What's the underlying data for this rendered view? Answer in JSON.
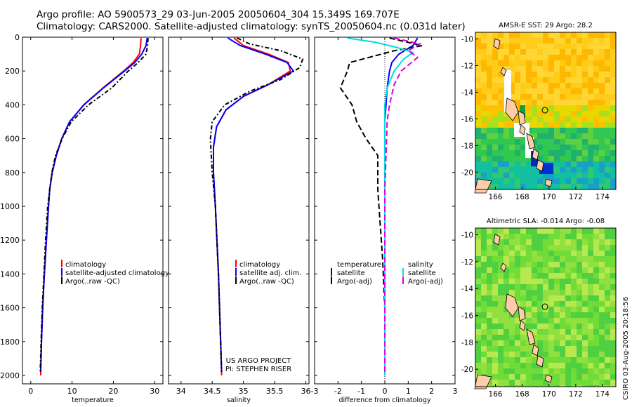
{
  "header": {
    "line1": "Argo profile: AO 5900573_29 03-Jun-2005 20050604_304 15.349S 169.707E",
    "line2": "Climatology: CARS2000. Satellite-adjusted climatology: synTS_20050604.nc (0.031d later)"
  },
  "side_label": "CSIRO 03-Aug-2005 20:18:56",
  "chart_data": [
    {
      "id": "temperature",
      "type": "line",
      "xlabel": "temperature",
      "xlim": [
        -2,
        32
      ],
      "xticks": [
        0,
        10,
        20,
        30
      ],
      "ylim": [
        2050,
        0
      ],
      "yticks": [
        0,
        200,
        400,
        600,
        800,
        1000,
        1200,
        1400,
        1600,
        1800,
        2000
      ],
      "legend": [
        "climatology",
        "satellite-adjusted climatology",
        "Argo(..raw -QC)"
      ],
      "series": [
        {
          "name": "climatology",
          "color": "#ff0000",
          "dash": "",
          "points": [
            [
              26.7,
              5
            ],
            [
              26.6,
              50
            ],
            [
              26.3,
              100
            ],
            [
              24.8,
              150
            ],
            [
              22.5,
              200
            ],
            [
              17.5,
              300
            ],
            [
              12.8,
              400
            ],
            [
              9.4,
              500
            ],
            [
              7.5,
              600
            ],
            [
              6.2,
              700
            ],
            [
              5.2,
              800
            ],
            [
              4.6,
              900
            ],
            [
              4.3,
              1000
            ],
            [
              3.8,
              1200
            ],
            [
              3.3,
              1400
            ],
            [
              2.9,
              1600
            ],
            [
              2.6,
              1800
            ],
            [
              2.4,
              2000
            ]
          ]
        },
        {
          "name": "satellite-adjusted climatology",
          "color": "#0000ff",
          "dash": "",
          "points": [
            [
              28.2,
              5
            ],
            [
              27.9,
              50
            ],
            [
              26.9,
              100
            ],
            [
              25.2,
              150
            ],
            [
              22.7,
              200
            ],
            [
              17.6,
              300
            ],
            [
              12.9,
              400
            ],
            [
              9.4,
              500
            ],
            [
              7.5,
              600
            ],
            [
              6.2,
              700
            ],
            [
              5.2,
              800
            ],
            [
              4.6,
              900
            ],
            [
              4.3,
              1000
            ],
            [
              3.8,
              1200
            ],
            [
              3.3,
              1400
            ],
            [
              2.9,
              1600
            ],
            [
              2.6,
              1800
            ],
            [
              2.4,
              1980
            ]
          ]
        },
        {
          "name": "Argo(..raw -QC)",
          "color": "#000000",
          "dash": "6,3,2,3",
          "points": [
            [
              28.4,
              5
            ],
            [
              28.3,
              50
            ],
            [
              27.9,
              100
            ],
            [
              26.0,
              150
            ],
            [
              23.6,
              200
            ],
            [
              19.6,
              300
            ],
            [
              14.0,
              400
            ],
            [
              9.8,
              500
            ],
            [
              7.6,
              600
            ],
            [
              6.0,
              700
            ],
            [
              5.1,
              800
            ],
            [
              4.6,
              900
            ],
            [
              4.1,
              1000
            ],
            [
              3.6,
              1200
            ],
            [
              3.2,
              1400
            ],
            [
              2.8,
              1600
            ],
            [
              2.5,
              1800
            ],
            [
              2.3,
              1980
            ]
          ]
        }
      ]
    },
    {
      "id": "salinity",
      "type": "line",
      "xlabel": "salinity",
      "xlim": [
        33.8,
        36.05
      ],
      "xticks": [
        34,
        34.5,
        35,
        35.5,
        36
      ],
      "xticklabels": [
        "34",
        "34.5",
        "35",
        "35.5",
        "36"
      ],
      "ylim": [
        2050,
        0
      ],
      "yticks": [
        0,
        200,
        400,
        600,
        800,
        1000,
        1200,
        1400,
        1600,
        1800,
        2000
      ],
      "legend": [
        "climatology",
        "satellite adj. clim.",
        "Argo(..raw -QC)"
      ],
      "annotation": [
        "US ARGO PROJECT",
        "PI: STEPHEN RISER"
      ],
      "series": [
        {
          "name": "climatology",
          "color": "#ff0000",
          "dash": "",
          "points": [
            [
              34.85,
              5
            ],
            [
              35.0,
              50
            ],
            [
              35.4,
              100
            ],
            [
              35.72,
              150
            ],
            [
              35.75,
              200
            ],
            [
              35.4,
              280
            ],
            [
              35.0,
              350
            ],
            [
              34.72,
              430
            ],
            [
              34.57,
              530
            ],
            [
              34.52,
              650
            ],
            [
              34.52,
              800
            ],
            [
              34.55,
              1000
            ],
            [
              34.6,
              1400
            ],
            [
              34.65,
              2000
            ]
          ]
        },
        {
          "name": "satellite adj. clim.",
          "color": "#0000ff",
          "dash": "",
          "points": [
            [
              34.75,
              5
            ],
            [
              34.95,
              50
            ],
            [
              35.35,
              100
            ],
            [
              35.7,
              150
            ],
            [
              35.8,
              200
            ],
            [
              35.4,
              280
            ],
            [
              35.0,
              350
            ],
            [
              34.72,
              430
            ],
            [
              34.57,
              530
            ],
            [
              34.52,
              650
            ],
            [
              34.52,
              800
            ],
            [
              34.55,
              1000
            ],
            [
              34.6,
              1400
            ],
            [
              34.65,
              1980
            ]
          ]
        },
        {
          "name": "Argo(..raw -QC)",
          "color": "#000000",
          "dash": "6,3,2,3",
          "points": [
            [
              34.9,
              5
            ],
            [
              35.1,
              40
            ],
            [
              35.6,
              80
            ],
            [
              35.95,
              130
            ],
            [
              35.9,
              180
            ],
            [
              35.6,
              250
            ],
            [
              35.1,
              320
            ],
            [
              34.7,
              400
            ],
            [
              34.5,
              500
            ],
            [
              34.47,
              600
            ],
            [
              34.5,
              800
            ],
            [
              34.55,
              1000
            ],
            [
              34.6,
              1400
            ],
            [
              34.65,
              1980
            ]
          ]
        }
      ]
    },
    {
      "id": "difference",
      "type": "line",
      "xlabel": "difference from climatology",
      "xlim": [
        -3,
        3
      ],
      "xticks": [
        -3,
        -2,
        -1,
        0,
        1,
        2,
        3
      ],
      "ylim": [
        2050,
        0
      ],
      "yticks": [
        0,
        200,
        400,
        600,
        800,
        1000,
        1200,
        1400,
        1600,
        1800,
        2000
      ],
      "legend_left_title": "temperature",
      "legend_right_title": "salinity",
      "legend_left": [
        "satellite",
        "Argo(-adj)"
      ],
      "legend_right": [
        "satellite",
        "Argo(-adj)"
      ],
      "series": [
        {
          "name": "temperature satellite",
          "color": "#0000ff",
          "dash": "",
          "points": [
            [
              1.4,
              5
            ],
            [
              1.2,
              50
            ],
            [
              0.6,
              100
            ],
            [
              0.3,
              150
            ],
            [
              0.2,
              200
            ],
            [
              0.1,
              300
            ],
            [
              0.05,
              400
            ],
            [
              0,
              500
            ],
            [
              0,
              700
            ],
            [
              0,
              2000
            ]
          ]
        },
        {
          "name": "temperature Argo(-adj)",
          "color": "#000000",
          "dash": "8,4",
          "points": [
            [
              0.2,
              5
            ],
            [
              1.6,
              50
            ],
            [
              0.4,
              80
            ],
            [
              -1.5,
              150
            ],
            [
              -1.6,
              200
            ],
            [
              -1.9,
              300
            ],
            [
              -1.4,
              400
            ],
            [
              -1.2,
              500
            ],
            [
              -0.8,
              600
            ],
            [
              -0.3,
              700
            ],
            [
              -0.3,
              900
            ],
            [
              -0.2,
              1100
            ],
            [
              -0.1,
              1300
            ],
            [
              0,
              1600
            ],
            [
              0,
              1980
            ]
          ]
        },
        {
          "name": "salinity satellite",
          "color": "#00dddd",
          "dash": "",
          "points": [
            [
              -1.6,
              5
            ],
            [
              -0.4,
              30
            ],
            [
              0.5,
              60
            ],
            [
              1.2,
              90
            ],
            [
              0.8,
              130
            ],
            [
              0.4,
              200
            ],
            [
              0.1,
              300
            ],
            [
              0,
              400
            ],
            [
              0,
              2000
            ]
          ]
        },
        {
          "name": "salinity Argo(-adj)",
          "color": "#dd00dd",
          "dash": "8,4",
          "points": [
            [
              0.4,
              5
            ],
            [
              1.5,
              40
            ],
            [
              1.0,
              80
            ],
            [
              1.4,
              120
            ],
            [
              0.7,
              200
            ],
            [
              0.4,
              280
            ],
            [
              0.2,
              400
            ],
            [
              0.1,
              500
            ],
            [
              0.05,
              700
            ],
            [
              0,
              900
            ],
            [
              0,
              2000
            ]
          ]
        }
      ]
    },
    {
      "id": "sst_map",
      "type": "heatmap",
      "title": "AMSR-E SST: 29 Argo: 28.2",
      "xlim": [
        164.5,
        175
      ],
      "ylim": [
        -21.3,
        -9.5
      ],
      "xticks": [
        166,
        168,
        170,
        172,
        174
      ],
      "yticks": [
        -10,
        -12,
        -14,
        -16,
        -18,
        -20
      ],
      "marker": {
        "lon": 169.7,
        "lat": -15.35
      }
    },
    {
      "id": "sla_map",
      "type": "heatmap",
      "title": "Altimetric SLA: -0.014 Argo: -0.08",
      "xlim": [
        164.5,
        175
      ],
      "ylim": [
        -21.3,
        -9.5
      ],
      "xticks": [
        166,
        168,
        170,
        172,
        174
      ],
      "yticks": [
        -10,
        -12,
        -14,
        -16,
        -18,
        -20
      ],
      "marker": {
        "lon": 169.7,
        "lat": -15.35
      }
    }
  ],
  "colors": {
    "red": "#ff0000",
    "blue": "#0000ff",
    "black": "#000000",
    "cyan": "#00dddd",
    "magenta": "#dd00dd"
  }
}
